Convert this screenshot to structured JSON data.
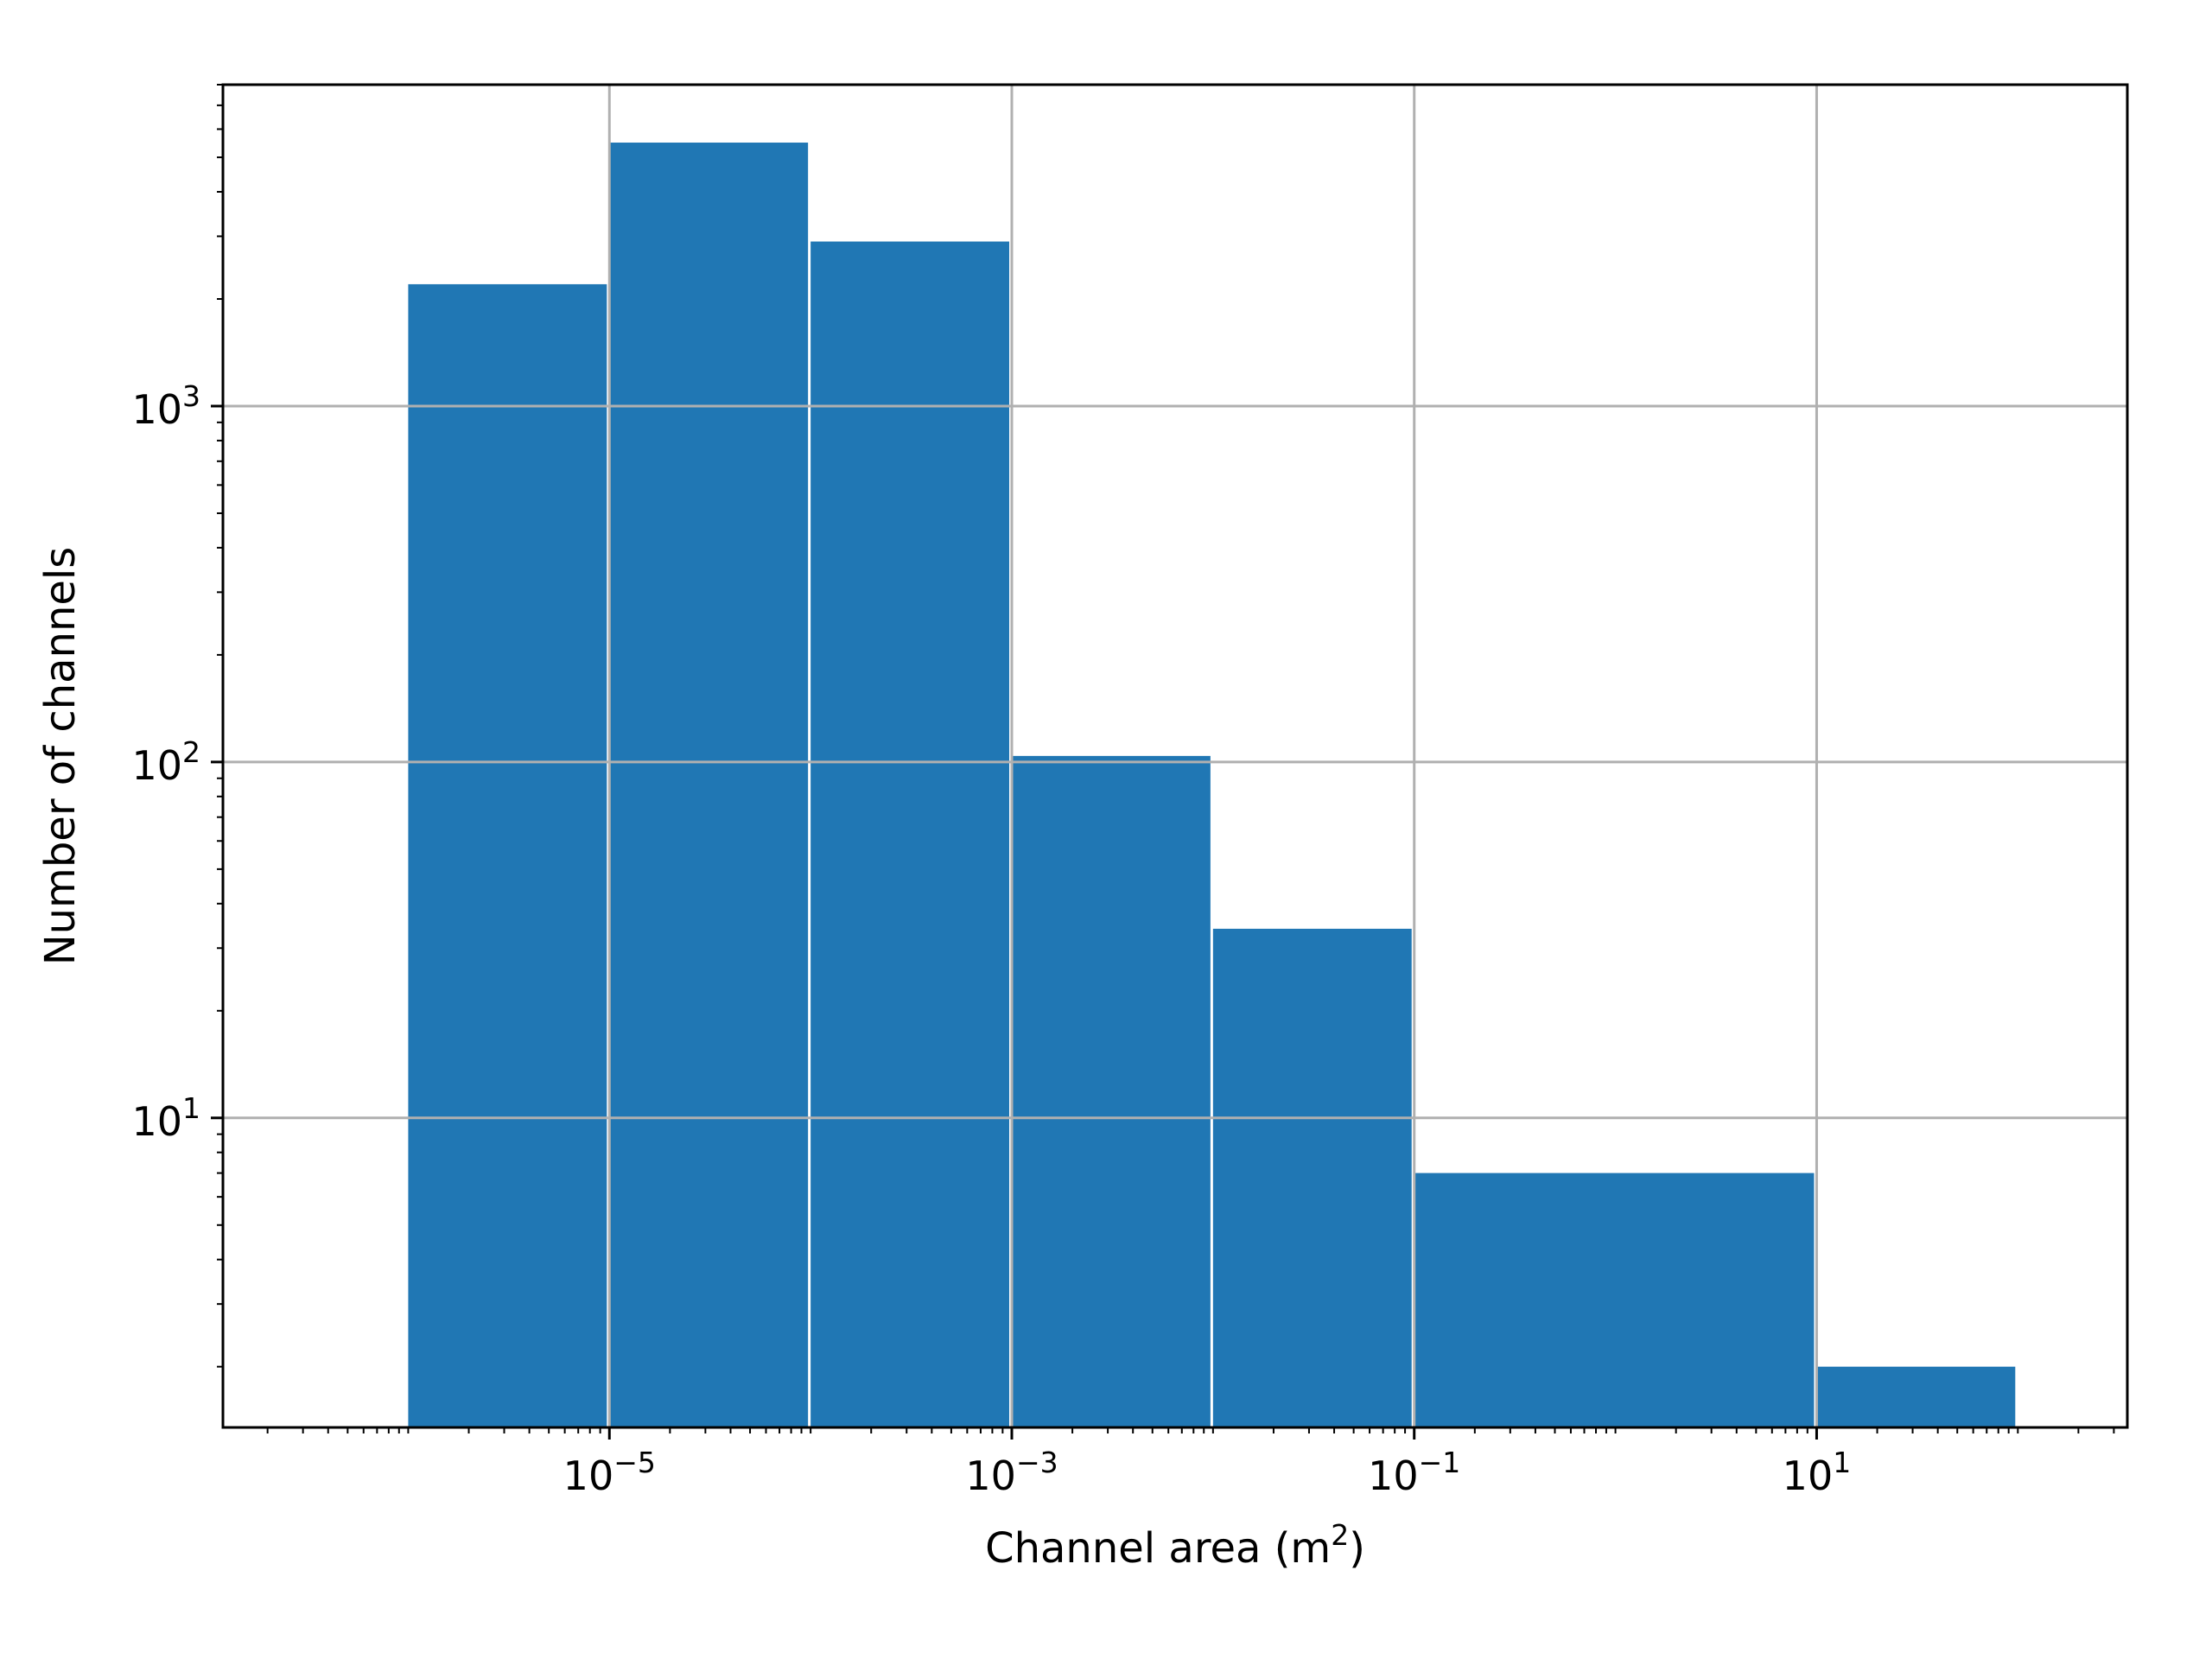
{
  "chart_data": {
    "type": "bar",
    "subtype": "histogram",
    "x_scale": "log",
    "y_scale": "log",
    "xlabel": "Channel area (m",
    "xlabel_sup": "2",
    "xlabel_suffix": ")",
    "ylabel": "Number of channels",
    "xlim": [
      1.2e-07,
      350.0
    ],
    "ylim": [
      1.35,
      8000
    ],
    "grid": true,
    "bar_color": "#2077b4",
    "bins": [
      {
        "x0": 1e-06,
        "x1": 1e-05,
        "count": 2200
      },
      {
        "x0": 1e-05,
        "x1": 0.0001,
        "count": 5500
      },
      {
        "x0": 0.0001,
        "x1": 0.001,
        "count": 2900
      },
      {
        "x0": 0.001,
        "x1": 0.01,
        "count": 104
      },
      {
        "x0": 0.01,
        "x1": 0.1,
        "count": 34
      },
      {
        "x0": 0.1,
        "x1": 10.0,
        "count": 7
      },
      {
        "x0": 10.0,
        "x1": 100.0,
        "count": 2
      }
    ],
    "x_ticks": [
      {
        "value": 1e-05,
        "base": "10",
        "exp": "−5"
      },
      {
        "value": 0.001,
        "base": "10",
        "exp": "−3"
      },
      {
        "value": 0.1,
        "base": "10",
        "exp": "−1"
      },
      {
        "value": 10.0,
        "base": "10",
        "exp": "1"
      }
    ],
    "y_ticks": [
      {
        "value": 10,
        "base": "10",
        "exp": "1"
      },
      {
        "value": 100,
        "base": "10",
        "exp": "2"
      },
      {
        "value": 1000,
        "base": "10",
        "exp": "3"
      }
    ]
  }
}
